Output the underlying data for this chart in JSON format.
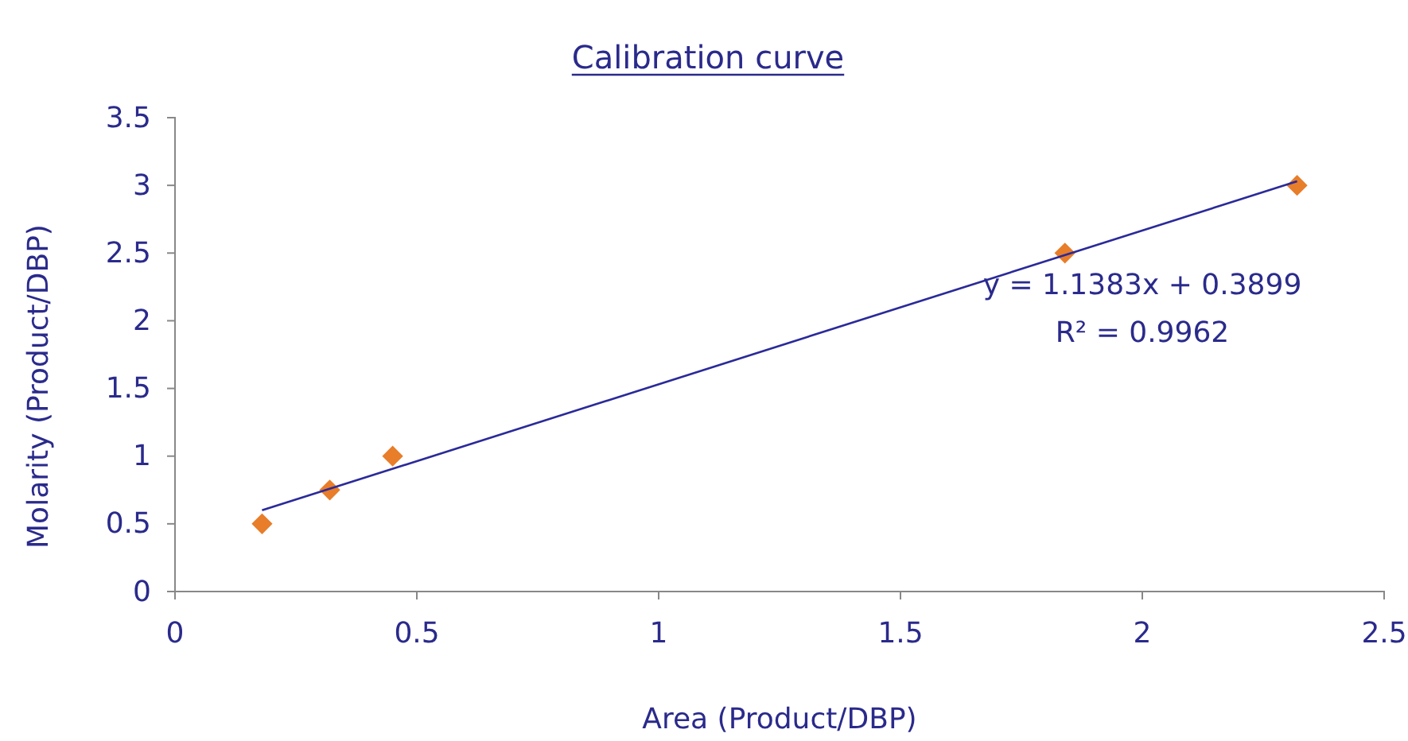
{
  "chart_data": {
    "type": "scatter",
    "title": "Calibration curve",
    "xlabel": "Area (Product/DBP)",
    "ylabel": "Molarity (Product/DBP)",
    "xlim": [
      0,
      2.5
    ],
    "xticks": [
      0,
      0.5,
      1,
      1.5,
      2,
      2.5
    ],
    "ylim": [
      0,
      3.5
    ],
    "yticks": [
      0,
      0.5,
      1,
      1.5,
      2,
      2.5,
      3,
      3.5
    ],
    "grid": false,
    "series": [
      {
        "color": "#e87d2a",
        "marker": "diamond",
        "x": [
          0.18,
          0.32,
          0.45,
          1.84,
          2.32
        ],
        "values": [
          0.5,
          0.75,
          1,
          2.5,
          3
        ]
      },
      {
        "type": "line",
        "color": "#2a2a9a",
        "marker": "none",
        "line_style": "solid",
        "x": [
          0.18,
          2.32
        ],
        "values": [
          0.6,
          3.03
        ]
      }
    ],
    "annotations": [
      "y = 1.1383x + 0.3899",
      "R² = 0.9962"
    ]
  }
}
